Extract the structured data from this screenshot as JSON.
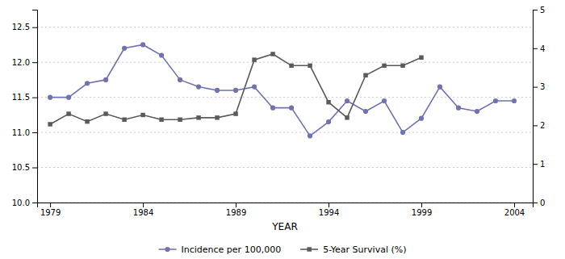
{
  "chart_data": {
    "type": "line",
    "xlabel": "YEAR",
    "x": [
      1979,
      1980,
      1981,
      1982,
      1983,
      1984,
      1985,
      1986,
      1987,
      1988,
      1989,
      1990,
      1991,
      1992,
      1993,
      1994,
      1995,
      1996,
      1997,
      1998,
      1999,
      2000,
      2001,
      2002,
      2003,
      2004
    ],
    "series": [
      {
        "name": "Incidence per 100,000",
        "color": "#7272b0",
        "marker": "circle",
        "values": [
          11.5,
          11.5,
          11.7,
          11.75,
          12.2,
          12.25,
          12.1,
          11.75,
          11.65,
          11.6,
          11.6,
          11.65,
          11.35,
          11.35,
          10.95,
          11.15,
          11.45,
          11.3,
          11.45,
          11.0,
          11.2,
          11.65,
          11.35,
          11.3,
          11.45,
          11.45
        ]
      },
      {
        "name": "5-Year Survival (%)",
        "color": "#5a5a5a",
        "marker": "square",
        "axis": "y2",
        "values": [
          2.03,
          2.3,
          2.1,
          2.3,
          2.15,
          2.27,
          2.15,
          2.15,
          2.2,
          2.2,
          2.3,
          3.7,
          3.85,
          3.55,
          3.55,
          2.6,
          2.2,
          3.3,
          3.55,
          3.55,
          3.76,
          null,
          null,
          null,
          null,
          null
        ]
      }
    ],
    "xlim": [
      1978.3,
      2005.0
    ],
    "xticks": [
      1979,
      1984,
      1989,
      1994,
      1999,
      2004
    ],
    "ylim": [
      10.0,
      12.75
    ],
    "yticks": [
      {
        "value": 10.0,
        "label": "10.0"
      },
      10.5,
      {
        "value": 11.0,
        "label": "11.0"
      },
      11.5,
      {
        "value": 12.0,
        "label": "12.0"
      },
      12.5
    ],
    "y2lim": [
      0,
      5.0
    ],
    "y2ticks": [
      0,
      1,
      2,
      3,
      4,
      5
    ],
    "grid": true,
    "legend": "bottom"
  }
}
